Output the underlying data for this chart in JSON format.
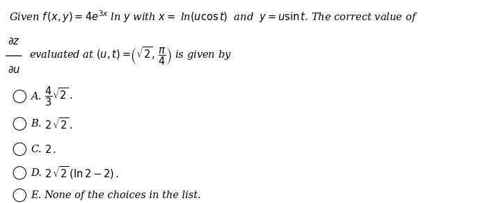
{
  "bg_color": "#ffffff",
  "line1": "Given $f\\,(x,y) =4e^{3x}$ ln $y$ with $x = $ ln$(u\\cos t)$  and  $y = u\\sin t$. The correct value of",
  "frac_num": "$\\partial z$",
  "frac_den": "$\\partial u$",
  "eval_text": "evaluated at $(u,t) =\\!\\left(\\sqrt{2},\\,\\dfrac{\\pi}{4}\\right)$ is given by",
  "options": [
    {
      "label": "A.",
      "math": true,
      "text": "$\\dfrac{4}{3}\\sqrt{2}\\,.$"
    },
    {
      "label": "B.",
      "math": true,
      "text": "$2\\,\\sqrt{2}\\,.$"
    },
    {
      "label": "C.",
      "math": true,
      "text": "$2\\,.$"
    },
    {
      "label": "D.",
      "math": true,
      "text": "$2\\,\\sqrt{2}\\,(\\ln 2-2)\\,.$"
    },
    {
      "label": "E.",
      "math": false,
      "text": "None of the choices in the list."
    }
  ],
  "fs_title": 10.5,
  "fs_body": 10.5,
  "fs_opt": 10.5
}
